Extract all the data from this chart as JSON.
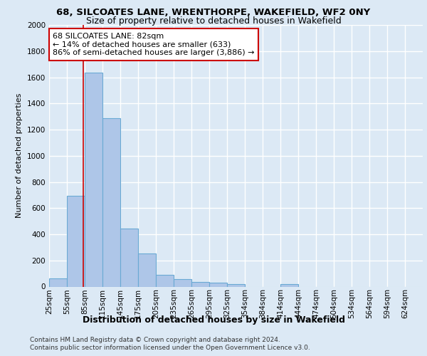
{
  "title1": "68, SILCOATES LANE, WRENTHORPE, WAKEFIELD, WF2 0NY",
  "title2": "Size of property relative to detached houses in Wakefield",
  "xlabel": "Distribution of detached houses by size in Wakefield",
  "ylabel": "Number of detached properties",
  "footnote1": "Contains HM Land Registry data © Crown copyright and database right 2024.",
  "footnote2": "Contains public sector information licensed under the Open Government Licence v3.0.",
  "annotation_title": "68 SILCOATES LANE: 82sqm",
  "annotation_line1": "← 14% of detached houses are smaller (633)",
  "annotation_line2": "86% of semi-detached houses are larger (3,886) →",
  "property_size": 82,
  "bar_categories": [
    "25sqm",
    "55sqm",
    "85sqm",
    "115sqm",
    "145sqm",
    "175sqm",
    "205sqm",
    "235sqm",
    "265sqm",
    "295sqm",
    "325sqm",
    "354sqm",
    "384sqm",
    "414sqm",
    "444sqm",
    "474sqm",
    "504sqm",
    "534sqm",
    "564sqm",
    "594sqm",
    "624sqm"
  ],
  "bar_values": [
    65,
    695,
    1635,
    1285,
    445,
    255,
    90,
    55,
    35,
    28,
    18,
    0,
    0,
    18,
    0,
    0,
    0,
    0,
    0,
    0,
    0
  ],
  "bar_color": "#aec6e8",
  "bar_edge_color": "#6aaad4",
  "vline_color": "#cc0000",
  "ylim": [
    0,
    2000
  ],
  "yticks": [
    0,
    200,
    400,
    600,
    800,
    1000,
    1200,
    1400,
    1600,
    1800,
    2000
  ],
  "background_color": "#dce9f5",
  "axes_bg_color": "#dce9f5",
  "grid_color": "#ffffff",
  "annotation_box_color": "#ffffff",
  "annotation_box_edge": "#cc0000",
  "title1_fontsize": 9.5,
  "title2_fontsize": 9,
  "ylabel_fontsize": 8,
  "xlabel_fontsize": 9,
  "tick_fontsize": 7.5,
  "footnote_fontsize": 6.5,
  "annotation_fontsize": 8
}
